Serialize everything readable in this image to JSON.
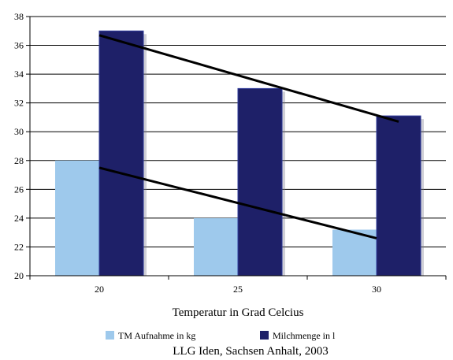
{
  "chart_data": {
    "type": "bar",
    "categories": [
      "20",
      "25",
      "30"
    ],
    "series": [
      {
        "name": "TM Aufnahme in kg",
        "values": [
          28,
          24,
          23.2
        ],
        "color": "#9ec9ec"
      },
      {
        "name": "Milchmenge in l",
        "values": [
          37,
          33,
          31.1
        ],
        "color": "#1e2068"
      }
    ],
    "trendlines": [
      {
        "series": "TM Aufnahme in kg",
        "from": 27.5,
        "to": 22.6
      },
      {
        "series": "Milchmenge in l",
        "from": 36.7,
        "to": 30.7
      }
    ],
    "xlabel": "Temperatur in Grad Celcius",
    "ylabel": "",
    "ylim": [
      20,
      38
    ],
    "yticks": [
      "20",
      "22",
      "24",
      "26",
      "28",
      "30",
      "32",
      "34",
      "36",
      "38"
    ],
    "grid": true,
    "legend_position": "bottom"
  },
  "source_note": "LLG Iden, Sachsen Anhalt, 2003"
}
